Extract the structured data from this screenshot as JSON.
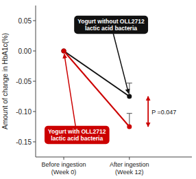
{
  "chart_data": {
    "type": "line",
    "categories": [
      "Before ingestion\n(Week 0)",
      "After ingestion\n(Week 12)"
    ],
    "series": [
      {
        "name": "Yogurt without OLL2712\nlactic acid bacteria",
        "color": "#111111",
        "marker": "circle",
        "values": [
          0.0,
          -0.075
        ],
        "yerr_upper": [
          0,
          0.022
        ]
      },
      {
        "name": "Yogurt with OLL2712\nlactic acid bacteria",
        "color": "#cc0000",
        "marker": "circle",
        "values": [
          0.0,
          -0.125
        ],
        "yerr_upper": [
          0,
          0.022
        ]
      }
    ],
    "ylabel": "Amount of change in HbA1c(%)",
    "annotation": "P =0.047",
    "ylim": [
      -0.175,
      0.075
    ],
    "yticks": [
      0.05,
      {
        "value": 0.0,
        "label": "0.00"
      },
      -0.05,
      {
        "value": -0.1,
        "label": "-0.10"
      },
      -0.15
    ],
    "grid": false
  }
}
